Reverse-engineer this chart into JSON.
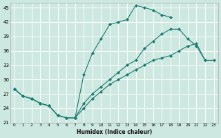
{
  "xlabel": "Humidex (Indice chaleur)",
  "bg_color": "#cce8e0",
  "grid_color": "#ffffff",
  "line_color": "#1a7a6e",
  "xlim": [
    -0.5,
    23.5
  ],
  "ylim": [
    21,
    46
  ],
  "xticks": [
    0,
    1,
    2,
    3,
    4,
    5,
    6,
    7,
    8,
    9,
    10,
    11,
    12,
    13,
    14,
    15,
    16,
    17,
    18,
    19,
    20,
    21,
    22,
    23
  ],
  "yticks": [
    21,
    24,
    27,
    30,
    33,
    36,
    39,
    42,
    45
  ],
  "line1_x": [
    0,
    1,
    2,
    3,
    4,
    5,
    6,
    7,
    8,
    9,
    10,
    11,
    12,
    13,
    14,
    15,
    16,
    17,
    18
  ],
  "line1_y": [
    28,
    26.5,
    26,
    25,
    24.5,
    22.5,
    22,
    22,
    31,
    35.5,
    38.5,
    41.5,
    42,
    42.5,
    45.5,
    45,
    44.5,
    43.5,
    43
  ],
  "line2_x": [
    0,
    1,
    2,
    3,
    4,
    5,
    6,
    7,
    8,
    9,
    10,
    11,
    12,
    13,
    14,
    15,
    16,
    17,
    18,
    19,
    20,
    21,
    22
  ],
  "line2_y": [
    28,
    26.5,
    26,
    25,
    24.5,
    22.5,
    22,
    22,
    25,
    27,
    28.5,
    30,
    31.5,
    33,
    34,
    36.5,
    38,
    39.5,
    40.5,
    40.5,
    38.5,
    37,
    34
  ],
  "line3_x": [
    0,
    1,
    2,
    3,
    4,
    5,
    6,
    7,
    8,
    9,
    10,
    11,
    12,
    13,
    14,
    15,
    16,
    17,
    18,
    19,
    20,
    21,
    22,
    23
  ],
  "line3_y": [
    28,
    26.5,
    26,
    25,
    24.5,
    22.5,
    22,
    22,
    24,
    26,
    27.5,
    29,
    30,
    31,
    32,
    33,
    34,
    34.5,
    35,
    36,
    37,
    37.5,
    34,
    34
  ]
}
